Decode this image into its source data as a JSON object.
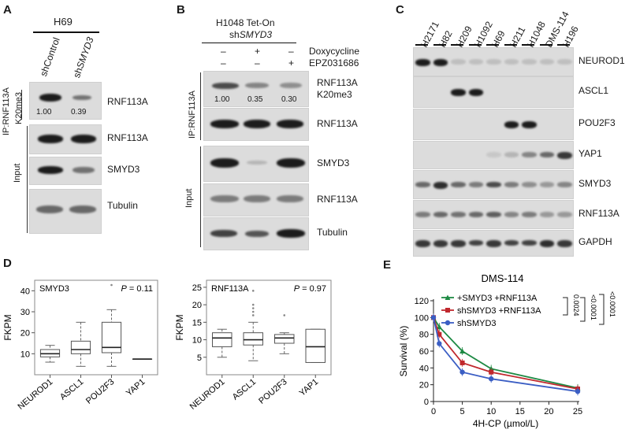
{
  "panelA": {
    "label": "A",
    "cell_line": "H69",
    "lanes": [
      "shControl",
      "shSMYD3"
    ],
    "lane_italic_part": "SMYD3",
    "ip_label": "IP:RNF113A",
    "k20_label": "K20me3",
    "input_label": "Input",
    "rows": [
      "RNF113A",
      "RNF113A",
      "SMYD3",
      "Tubulin"
    ],
    "quant": [
      "1.00",
      "0.39"
    ]
  },
  "panelB": {
    "label": "B",
    "title_line1": "H1048 Tet-On",
    "title_line2": "shSMYD3",
    "treatments": [
      {
        "name": "Doxycycline",
        "signs": [
          "–",
          "+",
          "–"
        ]
      },
      {
        "name": "EPZ031686",
        "signs": [
          "–",
          "–",
          "+"
        ]
      }
    ],
    "ip_label": "IP:RNF113A",
    "input_label": "Input",
    "rows": [
      "RNF113A",
      "K20me3",
      "RNF113A",
      "SMYD3",
      "RNF113A",
      "Tubulin"
    ],
    "quant": [
      "1.00",
      "0.35",
      "0.30"
    ]
  },
  "panelC": {
    "label": "C",
    "lanes": [
      "H2171",
      "H82",
      "H209",
      "H1092",
      "H69",
      "H211",
      "H1048",
      "DMS-114",
      "H196"
    ],
    "rows": [
      "NEUROD1",
      "ASCL1",
      "POU2F3",
      "YAP1",
      "SMYD3",
      "RNF113A",
      "GAPDH"
    ]
  },
  "panelD": {
    "label": "D",
    "plot1": {
      "title": "SMYD3",
      "p_text": "P = 0.11"
    },
    "plot2": {
      "title": "RNF113A",
      "p_text": "P = 0.97"
    },
    "ylabel": "FKPM"
  },
  "panelE": {
    "label": "E",
    "title": "DMS-114",
    "legend": [
      "+SMYD3 +RNF113A",
      "shSMYD3 +RNF113A",
      "shSMYD3"
    ],
    "pvals": [
      "0.0024",
      "<0.0001",
      "<0.0001"
    ]
  },
  "chart_data": [
    {
      "type": "box",
      "title": "SMYD3",
      "ylabel": "FKPM",
      "categories": [
        "NEUROD1",
        "ASCL1",
        "POU2F3",
        "YAP1"
      ],
      "yticks": [
        10,
        20,
        30,
        40
      ],
      "ylim": [
        0,
        45
      ],
      "annotation": "P = 0.11",
      "boxes": [
        {
          "min": 6,
          "q1": 8.5,
          "median": 10,
          "q3": 12,
          "max": 14
        },
        {
          "min": 4,
          "q1": 10,
          "median": 12,
          "q3": 16,
          "max": 25
        },
        {
          "min": 4,
          "q1": 10.5,
          "median": 13,
          "q3": 25,
          "max": 31,
          "outliers": [
            46
          ]
        },
        {
          "min": 7.5,
          "q1": 7.5,
          "median": 7.5,
          "q3": 7.5,
          "max": 7.5
        }
      ]
    },
    {
      "type": "box",
      "title": "RNF113A",
      "ylabel": "FKPM",
      "categories": [
        "NEUROD1",
        "ASCL1",
        "POU2F3",
        "YAP1"
      ],
      "yticks": [
        5,
        10,
        15,
        20,
        25
      ],
      "ylim": [
        0,
        27
      ],
      "annotation": "P = 0.97",
      "boxes": [
        {
          "min": 5,
          "q1": 8,
          "median": 10.5,
          "q3": 12,
          "max": 13
        },
        {
          "min": 4,
          "q1": 8.5,
          "median": 10,
          "q3": 12,
          "max": 15,
          "outliers": [
            17,
            18,
            19,
            20,
            24
          ]
        },
        {
          "min": 6,
          "q1": 9,
          "median": 10.5,
          "q3": 11.5,
          "max": 12,
          "outliers": [
            17
          ]
        },
        {
          "min": 3.5,
          "q1": 3.5,
          "median": 8,
          "q3": 13,
          "max": 13
        }
      ]
    },
    {
      "type": "line",
      "title": "DMS-114",
      "xlabel": "4H-CP (µmol/L)",
      "ylabel": "Survival (%)",
      "xlim": [
        0,
        25
      ],
      "ylim": [
        0,
        120
      ],
      "xticks": [
        0,
        5,
        10,
        15,
        20,
        25
      ],
      "yticks": [
        0,
        20,
        40,
        60,
        80,
        100,
        120
      ],
      "x": [
        0,
        1,
        5,
        10,
        25
      ],
      "series": [
        {
          "name": "+SMYD3 +RNF113A",
          "color": "#1e8a44",
          "values": [
            100,
            89,
            60,
            39,
            16
          ]
        },
        {
          "name": "shSMYD3 +RNF113A",
          "color": "#c0282d",
          "values": [
            100,
            80,
            46,
            35,
            15
          ]
        },
        {
          "name": "shSMYD3",
          "color": "#3b5ec4",
          "values": [
            100,
            69,
            35,
            27,
            12
          ]
        }
      ]
    }
  ]
}
